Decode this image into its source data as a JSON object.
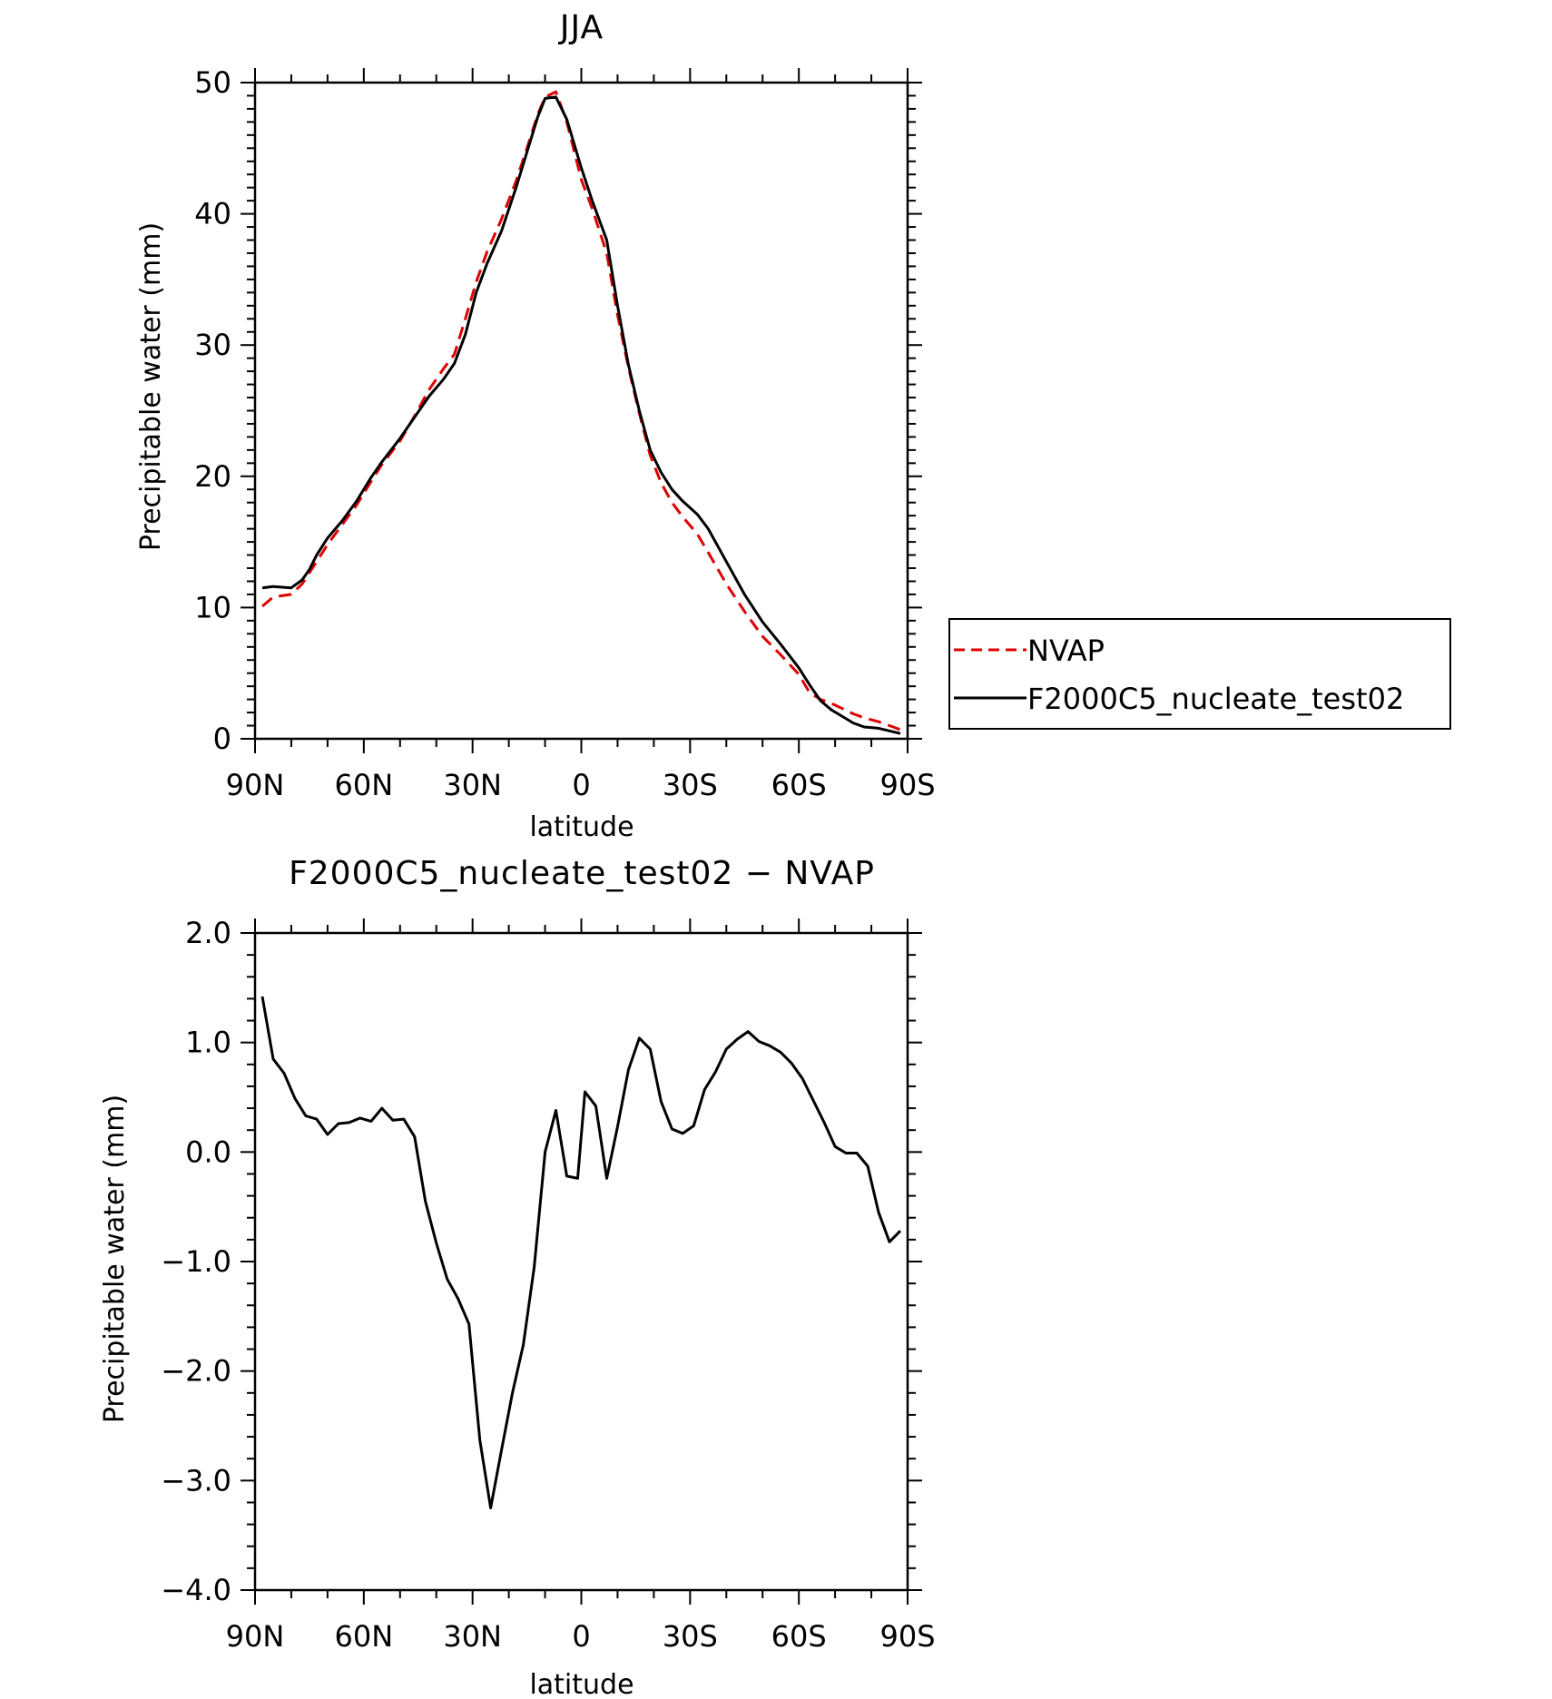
{
  "colors": {
    "nvap": "#e00000",
    "model": "#000000",
    "axis": "#000000",
    "background": "#ffffff"
  },
  "chart_data": [
    {
      "type": "line",
      "title": "JJA",
      "xlabel": "latitude",
      "ylabel": "Precipitable water (mm)",
      "xlim": [
        -90,
        90
      ],
      "ylim": [
        0,
        50
      ],
      "x_note": "positive = N, negative = S",
      "xticks": [
        90,
        60,
        30,
        0,
        -30,
        -60,
        -90
      ],
      "xticklabels": [
        "90N",
        "60N",
        "30N",
        "0",
        "30S",
        "60S",
        "90S"
      ],
      "yticks": [
        0,
        10,
        20,
        30,
        40,
        50
      ],
      "yticklabels": [
        "0",
        "10",
        "20",
        "30",
        "40",
        "50"
      ],
      "legend": {
        "placement": "right, outside plot",
        "entries": [
          "NVAP",
          "F2000C5_nucleate_test02"
        ]
      },
      "series": [
        {
          "name": "NVAP",
          "color": "#e00000",
          "dash": "dashed",
          "x": [
            88,
            85,
            80,
            77,
            73,
            70,
            66,
            62,
            58,
            55,
            50,
            46,
            42,
            38,
            35,
            32,
            29,
            26,
            22,
            18,
            15,
            12,
            10,
            7,
            4,
            0,
            -3,
            -7,
            -10,
            -13,
            -16,
            -19,
            -22,
            -25,
            -28,
            -32,
            -35,
            -40,
            -45,
            -50,
            -55,
            -60,
            -63,
            -66,
            -69,
            -72,
            -75,
            -78,
            -82,
            -85,
            -88
          ],
          "y": [
            10.1,
            10.8,
            11.0,
            11.8,
            13.5,
            14.8,
            16.3,
            17.8,
            19.6,
            20.9,
            22.7,
            24.6,
            26.6,
            28.2,
            29.3,
            32.0,
            34.8,
            37.1,
            39.6,
            42.5,
            45.0,
            47.6,
            48.9,
            49.3,
            47.0,
            42.6,
            40.4,
            37.0,
            32.3,
            28.3,
            24.8,
            21.6,
            19.5,
            18.0,
            16.9,
            15.6,
            14.2,
            11.8,
            9.7,
            7.8,
            6.4,
            4.9,
            3.5,
            3.0,
            2.7,
            2.3,
            1.9,
            1.6,
            1.3,
            1.0,
            0.7
          ]
        },
        {
          "name": "F2000C5_nucleate_test02",
          "color": "#000000",
          "dash": "solid",
          "x": [
            88,
            85,
            80,
            77,
            75,
            73,
            70,
            66,
            62,
            58,
            55,
            50,
            46,
            42,
            38,
            35,
            32,
            29,
            26,
            22,
            18,
            15,
            12,
            10,
            7,
            4,
            0,
            -3,
            -7,
            -10,
            -13,
            -16,
            -19,
            -22,
            -25,
            -28,
            -32,
            -35,
            -40,
            -45,
            -50,
            -55,
            -60,
            -63,
            -66,
            -69,
            -72,
            -75,
            -78,
            -82,
            -85,
            -88
          ],
          "y": [
            11.5,
            11.6,
            11.5,
            12.1,
            12.9,
            14.0,
            15.3,
            16.6,
            18.1,
            19.9,
            21.1,
            22.9,
            24.5,
            26.1,
            27.4,
            28.6,
            30.8,
            34.0,
            36.2,
            38.7,
            42.0,
            44.7,
            47.4,
            48.8,
            48.9,
            47.2,
            43.5,
            41.0,
            38.0,
            33.0,
            28.5,
            25.0,
            22.0,
            20.3,
            19.0,
            18.1,
            17.1,
            16.0,
            13.5,
            11.0,
            8.9,
            7.2,
            5.4,
            4.1,
            2.9,
            2.2,
            1.7,
            1.2,
            0.9,
            0.8,
            0.6,
            0.4
          ]
        }
      ]
    },
    {
      "type": "line",
      "title": "F2000C5_nucleate_test02 − NVAP",
      "xlabel": "latitude",
      "ylabel": "Precipitable water (mm)",
      "xlim": [
        -90,
        90
      ],
      "ylim": [
        -4.0,
        2.0
      ],
      "xticks": [
        90,
        60,
        30,
        0,
        -30,
        -60,
        -90
      ],
      "xticklabels": [
        "90N",
        "60N",
        "30N",
        "0",
        "30S",
        "60S",
        "90S"
      ],
      "yticks": [
        2.0,
        1.0,
        0.0,
        -1.0,
        -2.0,
        -3.0,
        -4.0
      ],
      "yticklabels": [
        "2.0",
        "1.0",
        "0.0",
        "−1.0",
        "−2.0",
        "−3.0",
        "−4.0"
      ],
      "series": [
        {
          "color": "#000000",
          "dash": "solid",
          "x": [
            88,
            85,
            82,
            79,
            76,
            73,
            70,
            67,
            64,
            61,
            58,
            55,
            52,
            49,
            46,
            43,
            40,
            37,
            34,
            31,
            28,
            25,
            22,
            19,
            16,
            13,
            10,
            7,
            4,
            1,
            -1,
            -4,
            -7,
            -10,
            -13,
            -16,
            -19,
            -22,
            -25,
            -28,
            -31,
            -34,
            -37,
            -40,
            -43,
            -46,
            -49,
            -52,
            -55,
            -58,
            -61,
            -64,
            -67,
            -70,
            -73,
            -76,
            -79,
            -82,
            -85,
            -88
          ],
          "y": [
            1.42,
            0.85,
            0.72,
            0.49,
            0.33,
            0.3,
            0.16,
            0.26,
            0.27,
            0.31,
            0.28,
            0.4,
            0.29,
            0.3,
            0.14,
            -0.45,
            -0.83,
            -1.16,
            -1.34,
            -1.57,
            -2.63,
            -3.25,
            -2.72,
            -2.2,
            -1.76,
            -1.05,
            0.0,
            0.38,
            -0.22,
            -0.24,
            0.55,
            0.42,
            -0.24,
            0.23,
            0.75,
            1.04,
            0.94,
            0.46,
            0.21,
            0.17,
            0.24,
            0.57,
            0.73,
            0.94,
            1.03,
            1.1,
            1.01,
            0.97,
            0.91,
            0.81,
            0.67,
            0.47,
            0.27,
            0.05,
            -0.01,
            -0.01,
            -0.13,
            -0.55,
            -0.82,
            -0.72
          ]
        }
      ]
    }
  ]
}
